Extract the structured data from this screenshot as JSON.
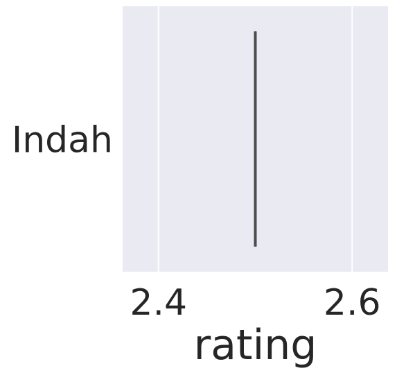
{
  "chart_data": {
    "type": "box",
    "orientation": "horizontal",
    "title": "",
    "xlabel": "rating",
    "ylabel": "",
    "categories": [
      "Indah"
    ],
    "series": [
      {
        "category": "Indah",
        "min": 2.5,
        "q1": 2.5,
        "median": 2.5,
        "q3": 2.5,
        "max": 2.5
      }
    ],
    "xlim": [
      2.363,
      2.637
    ],
    "xticks": [
      {
        "value": 2.4,
        "label": "2.4"
      },
      {
        "value": 2.6,
        "label": "2.6"
      }
    ],
    "grid": true,
    "style": {
      "plot_background": "#eaeaf2",
      "grid_color": "#ffffff",
      "box_line_color": "#4c4c4c",
      "text_color": "#262626"
    }
  }
}
